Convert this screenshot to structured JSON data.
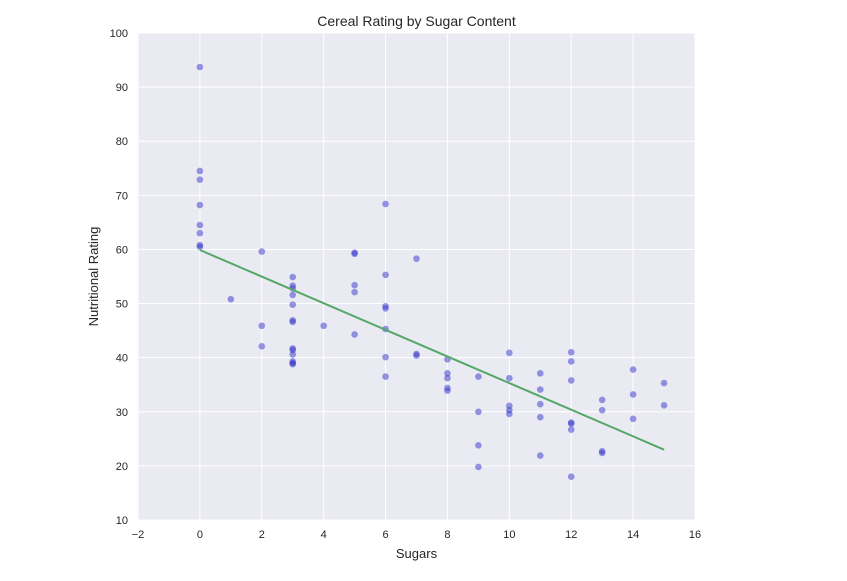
{
  "chart_data": {
    "type": "scatter",
    "title": "Cereal Rating by Sugar Content",
    "xlabel": "Sugars",
    "ylabel": "Nutritional Rating",
    "xlim": [
      -2,
      16
    ],
    "ylim": [
      10,
      100
    ],
    "x_ticks": [
      "−2",
      "0",
      "2",
      "4",
      "6",
      "8",
      "10",
      "12",
      "14",
      "16"
    ],
    "y_ticks": [
      "10",
      "20",
      "30",
      "40",
      "50",
      "60",
      "70",
      "80",
      "90",
      "100"
    ],
    "grid": true,
    "background_color": "#eaeaf2",
    "grid_color": "#ffffff",
    "point_color": "#3333cc",
    "line_color": "#55a868",
    "series": [
      {
        "points": [
          [
            0,
            93.7
          ],
          [
            0,
            74.5
          ],
          [
            0,
            72.9
          ],
          [
            0,
            68.2
          ],
          [
            0,
            64.5
          ],
          [
            0,
            63.0
          ],
          [
            0,
            60.8
          ],
          [
            0,
            60.5
          ],
          [
            1,
            50.8
          ],
          [
            2,
            59.6
          ],
          [
            2,
            45.9
          ],
          [
            2,
            42.1
          ],
          [
            3,
            54.9
          ],
          [
            3,
            53.3
          ],
          [
            3,
            52.8
          ],
          [
            3,
            51.6
          ],
          [
            3,
            49.8
          ],
          [
            3,
            46.9
          ],
          [
            3,
            46.6
          ],
          [
            3,
            41.7
          ],
          [
            3,
            41.4
          ],
          [
            3,
            40.6
          ],
          [
            3,
            39.3
          ],
          [
            3,
            39.0
          ],
          [
            3,
            38.8
          ],
          [
            4,
            45.9
          ],
          [
            5,
            59.4
          ],
          [
            5,
            59.2
          ],
          [
            5,
            53.4
          ],
          [
            5,
            52.1
          ],
          [
            5,
            44.3
          ],
          [
            6,
            68.4
          ],
          [
            6,
            55.3
          ],
          [
            6,
            49.5
          ],
          [
            6,
            49.1
          ],
          [
            6,
            45.3
          ],
          [
            6,
            40.1
          ],
          [
            6,
            36.5
          ],
          [
            7,
            58.3
          ],
          [
            7,
            40.7
          ],
          [
            7,
            40.4
          ],
          [
            8,
            39.7
          ],
          [
            8,
            37.1
          ],
          [
            8,
            36.2
          ],
          [
            8,
            34.4
          ],
          [
            8,
            33.9
          ],
          [
            9,
            36.5
          ],
          [
            9,
            30.0
          ],
          [
            9,
            23.8
          ],
          [
            9,
            19.8
          ],
          [
            10,
            40.9
          ],
          [
            10,
            36.2
          ],
          [
            10,
            31.1
          ],
          [
            10,
            30.3
          ],
          [
            10,
            29.6
          ],
          [
            11,
            37.1
          ],
          [
            11,
            34.1
          ],
          [
            11,
            31.4
          ],
          [
            11,
            29.0
          ],
          [
            11,
            21.9
          ],
          [
            12,
            41.0
          ],
          [
            12,
            39.3
          ],
          [
            12,
            35.8
          ],
          [
            12,
            28.0
          ],
          [
            12,
            27.8
          ],
          [
            12,
            26.7
          ],
          [
            12,
            18.0
          ],
          [
            13,
            32.2
          ],
          [
            13,
            30.3
          ],
          [
            13,
            22.7
          ],
          [
            13,
            22.4
          ],
          [
            14,
            37.8
          ],
          [
            14,
            33.2
          ],
          [
            14,
            28.7
          ],
          [
            15,
            35.3
          ],
          [
            15,
            31.2
          ]
        ]
      }
    ],
    "regression_line": {
      "x": [
        0,
        15
      ],
      "y": [
        59.9,
        23.0
      ]
    }
  }
}
